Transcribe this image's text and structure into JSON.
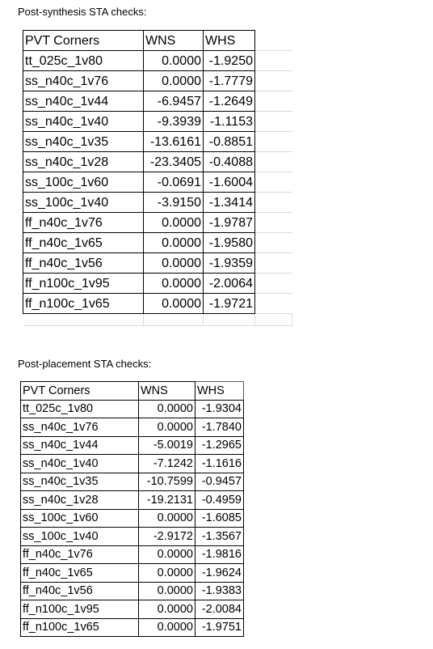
{
  "sections": [
    {
      "title": "Post-synthesis STA checks:",
      "headers": [
        "PVT Corners",
        "WNS",
        "WHS"
      ],
      "rows": [
        [
          "tt_025c_1v80",
          "0.0000",
          "-1.9250"
        ],
        [
          "ss_n40c_1v76",
          "0.0000",
          "-1.7779"
        ],
        [
          "ss_n40c_1v44",
          "-6.9457",
          "-1.2649"
        ],
        [
          "ss_n40c_1v40",
          "-9.3939",
          "-1.1153"
        ],
        [
          "ss_n40c_1v35",
          "-13.6161",
          "-0.8851"
        ],
        [
          "ss_n40c_1v28",
          "-23.3405",
          "-0.4088"
        ],
        [
          "ss_100c_1v60",
          "-0.0691",
          "-1.6004"
        ],
        [
          "ss_100c_1v40",
          "-3.9150",
          "-1.3414"
        ],
        [
          "ff_n40c_1v76",
          "0.0000",
          "-1.9787"
        ],
        [
          "ff_n40c_1v65",
          "0.0000",
          "-1.9580"
        ],
        [
          "ff_n40c_1v56",
          "0.0000",
          "-1.9359"
        ],
        [
          "ff_n100c_1v95",
          "0.0000",
          "-2.0064"
        ],
        [
          "ff_n100c_1v65",
          "0.0000",
          "-1.9721"
        ]
      ]
    },
    {
      "title": "Post-placement STA checks:",
      "headers": [
        "PVT Corners",
        "WNS",
        "WHS"
      ],
      "rows": [
        [
          "tt_025c_1v80",
          "0.0000",
          "-1.9304"
        ],
        [
          "ss_n40c_1v76",
          "0.0000",
          "-1.7840"
        ],
        [
          "ss_n40c_1v44",
          "-5.0019",
          "-1.2965"
        ],
        [
          "ss_n40c_1v40",
          "-7.1242",
          "-1.1616"
        ],
        [
          "ss_n40c_1v35",
          "-10.7599",
          "-0.9457"
        ],
        [
          "ss_n40c_1v28",
          "-19.2131",
          "-0.4959"
        ],
        [
          "ss_100c_1v60",
          "0.0000",
          "-1.6085"
        ],
        [
          "ss_100c_1v40",
          "-2.9172",
          "-1.3567"
        ],
        [
          "ff_n40c_1v76",
          "0.0000",
          "-1.9816"
        ],
        [
          "ff_n40c_1v65",
          "0.0000",
          "-1.9624"
        ],
        [
          "ff_n40c_1v56",
          "0.0000",
          "-1.9383"
        ],
        [
          "ff_n100c_1v95",
          "0.0000",
          "-2.0084"
        ],
        [
          "ff_n100c_1v65",
          "0.0000",
          "-1.9751"
        ]
      ]
    }
  ],
  "colors": {
    "text": "#000000",
    "cell_border": "#000000",
    "gridline": "#d9d9d9",
    "selection_border": "#1f7a3a"
  }
}
